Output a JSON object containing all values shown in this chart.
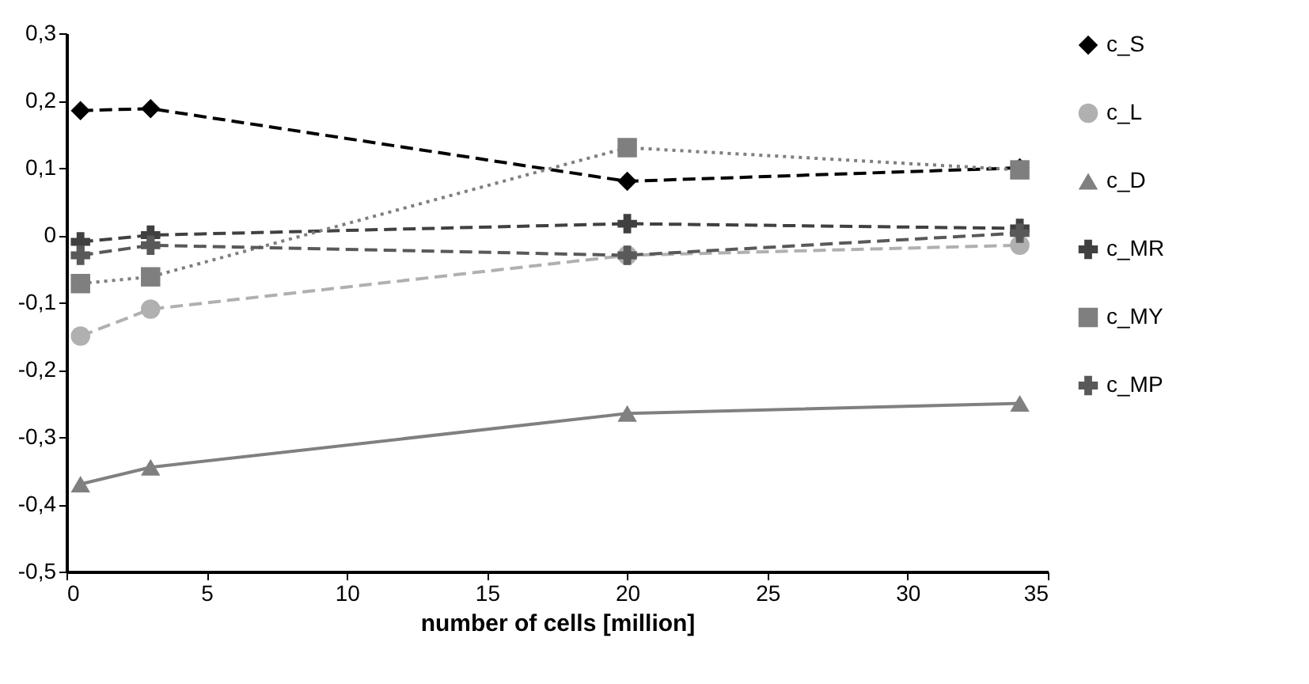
{
  "chart_data": {
    "type": "line",
    "xlabel": "number of cells [million]",
    "x": [
      0.5,
      3,
      20,
      34
    ],
    "series": [
      {
        "name": "c_S",
        "color": "#000000",
        "marker": "diamond",
        "line_style": "dashed",
        "values": [
          0.185,
          0.188,
          0.08,
          0.1
        ]
      },
      {
        "name": "c_L",
        "color": "#b0b0b0",
        "marker": "circle",
        "line_style": "dashed",
        "values": [
          -0.15,
          -0.11,
          -0.03,
          -0.015
        ]
      },
      {
        "name": "c_D",
        "color": "#808080",
        "marker": "triangle",
        "line_style": "solid",
        "values": [
          -0.37,
          -0.345,
          -0.265,
          -0.25
        ]
      },
      {
        "name": "c_MR",
        "color": "#404040",
        "marker": "cross",
        "line_style": "dashed",
        "values": [
          -0.01,
          0,
          0.017,
          0.01
        ]
      },
      {
        "name": "c_MY",
        "color": "#7f7f7f",
        "marker": "square",
        "line_style": "dotted",
        "values": [
          -0.072,
          -0.062,
          0.13,
          0.097
        ]
      },
      {
        "name": "c_MP",
        "color": "#595959",
        "marker": "cross",
        "line_style": "dashed",
        "values": [
          -0.03,
          -0.015,
          -0.03,
          0.003
        ]
      }
    ],
    "xlim": [
      0,
      35
    ],
    "xticks": [
      0,
      5,
      10,
      15,
      20,
      25,
      30,
      35
    ],
    "ylim": [
      -0.5,
      0.3
    ],
    "yticks": [
      {
        "value": -0.5,
        "label": "-0,5"
      },
      {
        "value": -0.4,
        "label": "-0,4"
      },
      {
        "value": -0.3,
        "label": "-0,3"
      },
      {
        "value": -0.2,
        "label": "-0,2"
      },
      {
        "value": -0.1,
        "label": "-0,1"
      },
      0,
      {
        "value": 0.1,
        "label": "0,1"
      },
      {
        "value": 0.2,
        "label": "0,2"
      },
      {
        "value": 0.3,
        "label": "0,3"
      }
    ],
    "grid": false,
    "legend": "right"
  }
}
